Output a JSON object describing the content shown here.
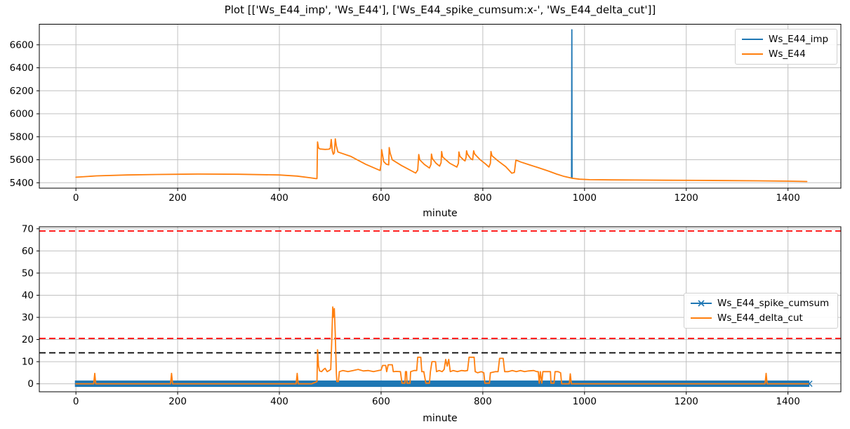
{
  "figure": {
    "background": "#ffffff",
    "colors": {
      "series_blue": "#1f77b4",
      "series_orange": "#ff7f0e",
      "grid": "#c0c0c0",
      "spine": "#000000",
      "threshold_red": "#ff0000",
      "threshold_black": "#000000"
    }
  },
  "chart_data": [
    {
      "type": "line",
      "title": "Plot [['Ws_E44_imp', 'Ws_E44'], ['Ws_E44_spike_cumsum:x-', 'Ws_E44_delta_cut']]",
      "xlabel": "minute",
      "ylabel": "",
      "grid": true,
      "xlim": [
        -72,
        1504
      ],
      "ylim": [
        5353,
        6779
      ],
      "x_ticks": [
        0,
        200,
        400,
        600,
        800,
        1000,
        1200,
        1400
      ],
      "y_ticks": [
        5400,
        5600,
        5800,
        6000,
        6200,
        6400,
        6600
      ],
      "legend": {
        "position": "upper right",
        "items": [
          {
            "label": "Ws_E44_imp",
            "color": "#1f77b4",
            "marker": "none"
          },
          {
            "label": "Ws_E44",
            "color": "#ff7f0e",
            "marker": "none"
          }
        ]
      },
      "series": [
        {
          "name": "Ws_E44_imp",
          "color": "#1f77b4",
          "note": "coincides with Ws_E44 everywhere except a single vertical spike at minute 975 reaching ~6730",
          "points": [
            [
              974.5,
              5442
            ],
            [
              975,
              6731
            ],
            [
              975.5,
              5440
            ]
          ]
        },
        {
          "name": "Ws_E44",
          "color": "#ff7f0e",
          "points": [
            [
              0,
              5448
            ],
            [
              40,
              5460
            ],
            [
              100,
              5468
            ],
            [
              160,
              5472
            ],
            [
              240,
              5476
            ],
            [
              320,
              5474
            ],
            [
              400,
              5468
            ],
            [
              435,
              5458
            ],
            [
              460,
              5444
            ],
            [
              472,
              5436
            ],
            [
              474,
              5436
            ],
            [
              475,
              5755
            ],
            [
              477,
              5703
            ],
            [
              480,
              5694
            ],
            [
              490,
              5690
            ],
            [
              497,
              5692
            ],
            [
              500,
              5698
            ],
            [
              502,
              5777
            ],
            [
              504,
              5680
            ],
            [
              506,
              5648
            ],
            [
              508,
              5660
            ],
            [
              510,
              5782
            ],
            [
              512,
              5720
            ],
            [
              515,
              5668
            ],
            [
              520,
              5660
            ],
            [
              540,
              5630
            ],
            [
              570,
              5560
            ],
            [
              598,
              5507
            ],
            [
              600,
              5560
            ],
            [
              601,
              5688
            ],
            [
              603,
              5640
            ],
            [
              605,
              5585
            ],
            [
              610,
              5562
            ],
            [
              615,
              5556
            ],
            [
              616,
              5706
            ],
            [
              618,
              5655
            ],
            [
              622,
              5600
            ],
            [
              640,
              5550
            ],
            [
              668,
              5484
            ],
            [
              672,
              5510
            ],
            [
              674,
              5646
            ],
            [
              676,
              5600
            ],
            [
              685,
              5560
            ],
            [
              695,
              5528
            ],
            [
              698,
              5560
            ],
            [
              699,
              5650
            ],
            [
              701,
              5610
            ],
            [
              708,
              5570
            ],
            [
              715,
              5545
            ],
            [
              718,
              5575
            ],
            [
              719,
              5672
            ],
            [
              721,
              5625
            ],
            [
              735,
              5570
            ],
            [
              749,
              5537
            ],
            [
              752,
              5570
            ],
            [
              753,
              5668
            ],
            [
              755,
              5630
            ],
            [
              762,
              5600
            ],
            [
              765,
              5590
            ],
            [
              767,
              5620
            ],
            [
              768,
              5678
            ],
            [
              770,
              5648
            ],
            [
              776,
              5610
            ],
            [
              780,
              5600
            ],
            [
              781,
              5640
            ],
            [
              782,
              5678
            ],
            [
              784,
              5650
            ],
            [
              795,
              5600
            ],
            [
              805,
              5565
            ],
            [
              812,
              5537
            ],
            [
              815,
              5570
            ],
            [
              816,
              5672
            ],
            [
              818,
              5635
            ],
            [
              830,
              5590
            ],
            [
              845,
              5540
            ],
            [
              857,
              5483
            ],
            [
              862,
              5490
            ],
            [
              865,
              5597
            ],
            [
              875,
              5580
            ],
            [
              890,
              5558
            ],
            [
              910,
              5530
            ],
            [
              930,
              5500
            ],
            [
              945,
              5476
            ],
            [
              960,
              5455
            ],
            [
              975,
              5440
            ],
            [
              990,
              5431
            ],
            [
              1010,
              5427
            ],
            [
              1050,
              5425
            ],
            [
              1100,
              5424
            ],
            [
              1160,
              5422
            ],
            [
              1220,
              5421
            ],
            [
              1280,
              5419
            ],
            [
              1340,
              5417
            ],
            [
              1400,
              5414
            ],
            [
              1437,
              5411
            ]
          ]
        }
      ]
    },
    {
      "type": "line",
      "title": "",
      "xlabel": "minute",
      "ylabel": "",
      "grid": true,
      "xlim": [
        -72,
        1504
      ],
      "ylim": [
        -3.6,
        70.9
      ],
      "x_ticks": [
        0,
        200,
        400,
        600,
        800,
        1000,
        1200,
        1400
      ],
      "y_ticks": [
        0,
        10,
        20,
        30,
        40,
        50,
        60,
        70
      ],
      "thresholds": [
        {
          "y": 69,
          "color": "#ff0000",
          "style": "dashed"
        },
        {
          "y": 20.5,
          "color": "#ff0000",
          "style": "dashed"
        },
        {
          "y": 14,
          "color": "#000000",
          "style": "dashed"
        }
      ],
      "legend": {
        "position": "center right",
        "items": [
          {
            "label": "Ws_E44_spike_cumsum",
            "color": "#1f77b4",
            "marker": "x"
          },
          {
            "label": "Ws_E44_delta_cut",
            "color": "#ff7f0e",
            "marker": "none"
          }
        ]
      },
      "series": [
        {
          "name": "Ws_E44_spike_cumsum",
          "color": "#1f77b4",
          "marker": "x",
          "render": "band",
          "note": "dense x-markers every minute form a solid band oscillating around 0",
          "x_range": [
            -2,
            1442
          ],
          "y_range": [
            -1.4,
            1.5
          ]
        },
        {
          "name": "Ws_E44_delta_cut",
          "color": "#ff7f0e",
          "points": [
            [
              0,
              0
            ],
            [
              35,
              0
            ],
            [
              37,
              4.7
            ],
            [
              39,
              0
            ],
            [
              186,
              0
            ],
            [
              188,
              4.7
            ],
            [
              190,
              0
            ],
            [
              433,
              0
            ],
            [
              435,
              4.7
            ],
            [
              437,
              0
            ],
            [
              464,
              0
            ],
            [
              466,
              0.3
            ],
            [
              469,
              0.5
            ],
            [
              474,
              1
            ],
            [
              475,
              15.4
            ],
            [
              477,
              8
            ],
            [
              479,
              5.8
            ],
            [
              483,
              5.5
            ],
            [
              487,
              6.5
            ],
            [
              490,
              7
            ],
            [
              494,
              5.5
            ],
            [
              498,
              6
            ],
            [
              501,
              6.5
            ],
            [
              503,
              20
            ],
            [
              505,
              34.7
            ],
            [
              506,
              30
            ],
            [
              508,
              34
            ],
            [
              510,
              22
            ],
            [
              512,
              5
            ],
            [
              513,
              1
            ],
            [
              516,
              1
            ],
            [
              518,
              5.5
            ],
            [
              525,
              6
            ],
            [
              535,
              5.5
            ],
            [
              545,
              6
            ],
            [
              555,
              6.5
            ],
            [
              565,
              5.8
            ],
            [
              575,
              6
            ],
            [
              585,
              5.5
            ],
            [
              595,
              6
            ],
            [
              600,
              6.2
            ],
            [
              603,
              8.3
            ],
            [
              609,
              8.3
            ],
            [
              611,
              5.5
            ],
            [
              614,
              8.6
            ],
            [
              622,
              8.6
            ],
            [
              624,
              5.5
            ],
            [
              630,
              5.6
            ],
            [
              638,
              5.5
            ],
            [
              641,
              0.3
            ],
            [
              647,
              0.3
            ],
            [
              648,
              5.5
            ],
            [
              650,
              5.5
            ],
            [
              651,
              0.3
            ],
            [
              657,
              0.3
            ],
            [
              658,
              5.5
            ],
            [
              665,
              6
            ],
            [
              670,
              6
            ],
            [
              672,
              12
            ],
            [
              678,
              12
            ],
            [
              680,
              5.5
            ],
            [
              684,
              5.5
            ],
            [
              688,
              0.3
            ],
            [
              695,
              0.3
            ],
            [
              697,
              5.5
            ],
            [
              700,
              10
            ],
            [
              707,
              10
            ],
            [
              709,
              5.5
            ],
            [
              714,
              6
            ],
            [
              720,
              5.5
            ],
            [
              724,
              6.5
            ],
            [
              727,
              11
            ],
            [
              730,
              8
            ],
            [
              733,
              11
            ],
            [
              736,
              5.5
            ],
            [
              742,
              6
            ],
            [
              750,
              5.5
            ],
            [
              758,
              6
            ],
            [
              765,
              5.8
            ],
            [
              770,
              6
            ],
            [
              773,
              12
            ],
            [
              783,
              12
            ],
            [
              785,
              5.5
            ],
            [
              790,
              5
            ],
            [
              797,
              5.5
            ],
            [
              802,
              5
            ],
            [
              804,
              0.3
            ],
            [
              813,
              0.3
            ],
            [
              815,
              5
            ],
            [
              825,
              5.5
            ],
            [
              830,
              5.5
            ],
            [
              833,
              11.5
            ],
            [
              840,
              11.5
            ],
            [
              843,
              5.5
            ],
            [
              850,
              5.5
            ],
            [
              858,
              6
            ],
            [
              866,
              5.5
            ],
            [
              874,
              6
            ],
            [
              882,
              5.5
            ],
            [
              890,
              5.8
            ],
            [
              900,
              6
            ],
            [
              906,
              5.5
            ],
            [
              909,
              5.5
            ],
            [
              911,
              0.3
            ],
            [
              913,
              5.5
            ],
            [
              916,
              0.3
            ],
            [
              918,
              5.5
            ],
            [
              922,
              5.5
            ],
            [
              930,
              5.5
            ],
            [
              933,
              5.5
            ],
            [
              934,
              0.3
            ],
            [
              940,
              0.3
            ],
            [
              942,
              5.5
            ],
            [
              948,
              5.5
            ],
            [
              953,
              5
            ],
            [
              955,
              0
            ],
            [
              970,
              0
            ],
            [
              972,
              4.5
            ],
            [
              974,
              0
            ],
            [
              1355,
              0
            ],
            [
              1357,
              4.7
            ],
            [
              1359,
              0
            ],
            [
              1440,
              0
            ]
          ]
        }
      ]
    }
  ]
}
